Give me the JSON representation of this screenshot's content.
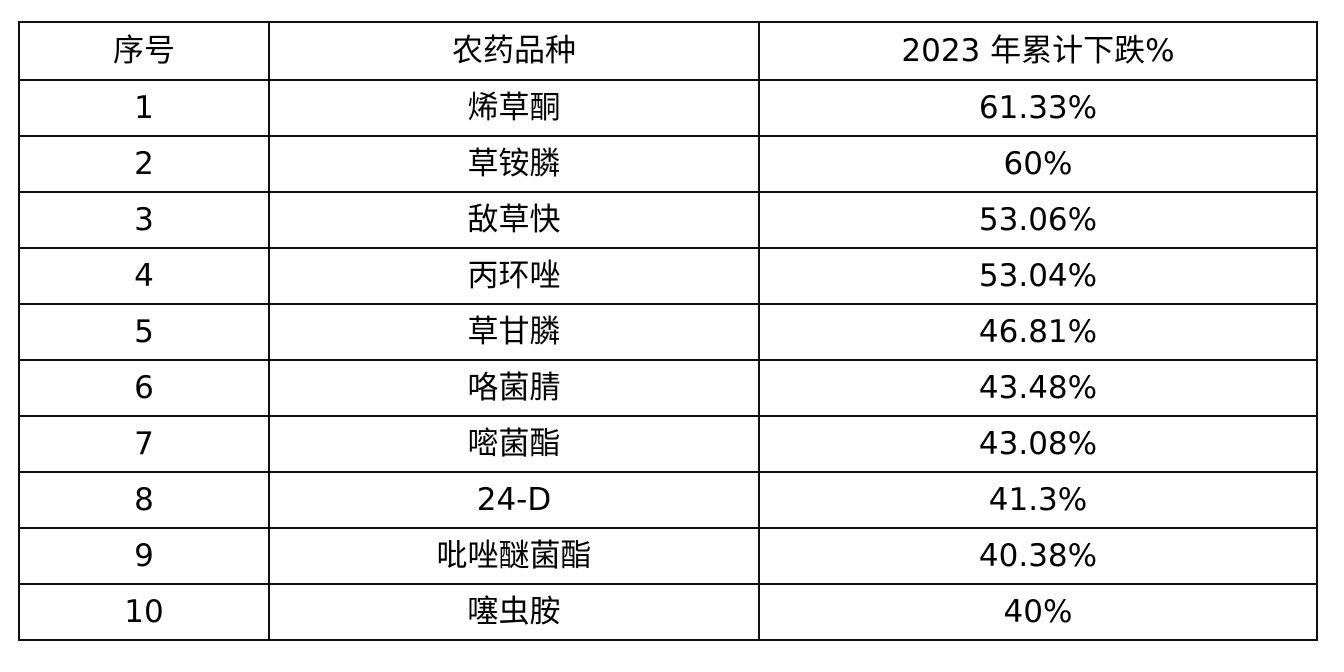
{
  "table": {
    "headers": [
      "序号",
      "农药品种",
      "2023 年累计下跌%"
    ],
    "rows": [
      {
        "index": "1",
        "name": "烯草酮",
        "decline": "61.33%"
      },
      {
        "index": "2",
        "name": "草铵膦",
        "decline": "60%"
      },
      {
        "index": "3",
        "name": "敌草快",
        "decline": "53.06%"
      },
      {
        "index": "4",
        "name": "丙环唑",
        "decline": "53.04%"
      },
      {
        "index": "5",
        "name": "草甘膦",
        "decline": "46.81%"
      },
      {
        "index": "6",
        "name": "咯菌腈",
        "decline": "43.48%"
      },
      {
        "index": "7",
        "name": "嘧菌酯",
        "decline": "43.08%"
      },
      {
        "index": "8",
        "name": "24-D",
        "decline": "41.3%"
      },
      {
        "index": "9",
        "name": "吡唑醚菌酯",
        "decline": "40.38%"
      },
      {
        "index": "10",
        "name": "噻虫胺",
        "decline": "40%"
      }
    ]
  }
}
